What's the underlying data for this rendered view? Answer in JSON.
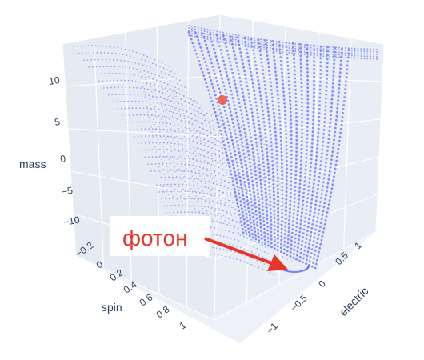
{
  "chart_data": {
    "type": "scatter3d",
    "axes": {
      "x": {
        "title": "spin",
        "ticks": [
          "−0.2",
          "0",
          "0.2",
          "0.4",
          "0.6",
          "0.8",
          "1"
        ]
      },
      "y": {
        "title": "electric",
        "ticks": [
          "1",
          "0.5",
          "0",
          "−0.5",
          "−1"
        ]
      },
      "z": {
        "title": "mass",
        "ticks": [
          "10",
          "5",
          "0",
          "−5",
          "−10"
        ]
      }
    },
    "series": [
      {
        "marker": "dense small points forming curved surface sheets",
        "color": "#636efa"
      },
      {
        "marker": "single point",
        "color": "#ef553b"
      }
    ],
    "annotations": [
      {
        "text": "фотон",
        "color": "#e8352a",
        "arrow": true
      }
    ]
  }
}
